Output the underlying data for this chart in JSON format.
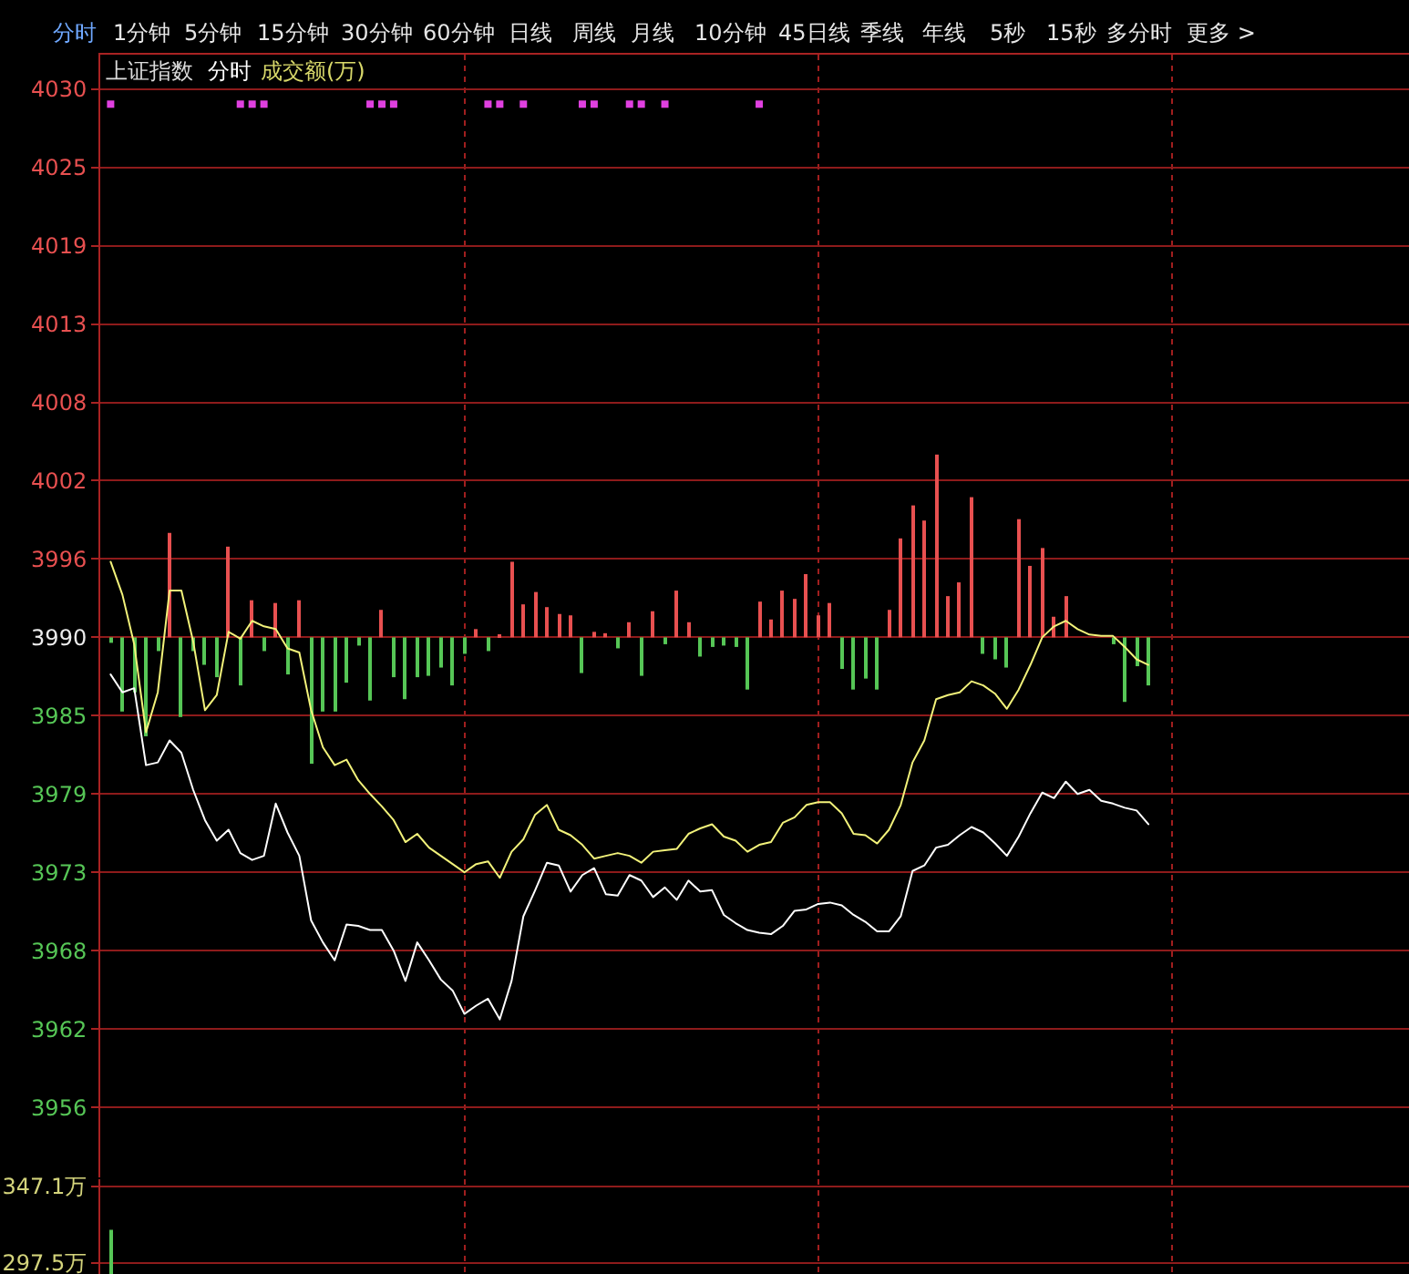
{
  "chart_data": [
    {
      "type": "line",
      "title": "上证指数",
      "subtitle": "分时",
      "annotations": [
        "成交额(万)",
        "分时",
        "1分钟",
        "5分钟",
        "15分钟",
        "30分钟",
        "60分钟",
        "日线",
        "周线",
        "月线",
        "10分钟",
        "45日线",
        "季线",
        "年线",
        "5秒",
        "15秒",
        "多分时",
        "更多 >"
      ],
      "categories": [
        null,
        null,
        null,
        null,
        null,
        null,
        null,
        null,
        null,
        null,
        null,
        null,
        null,
        null,
        null,
        null,
        null,
        null,
        null,
        null,
        null,
        null,
        null,
        null,
        null,
        null,
        null,
        null,
        null,
        null,
        null,
        null,
        null,
        null,
        null,
        null,
        null,
        null,
        null,
        null,
        null,
        null,
        null,
        null,
        null,
        null,
        null,
        null,
        null,
        null,
        null,
        null,
        null,
        null,
        null,
        null,
        null,
        null,
        null,
        null,
        null,
        null,
        null,
        null,
        null,
        null,
        null,
        null,
        null,
        null,
        null,
        null,
        null,
        null,
        null,
        null,
        null,
        null,
        null,
        null,
        null,
        null,
        null,
        null,
        null,
        null,
        null,
        null,
        null,
        null,
        null,
        null,
        null,
        null,
        null,
        null,
        null,
        null,
        null,
        null,
        null,
        null,
        null,
        null,
        null,
        null,
        null,
        null,
        null,
        null,
        null
      ],
      "ylim": [
        3951.1,
        4032.8
      ],
      "yticks": [
        {
          "value": 3956.2,
          "label": "3956"
        },
        {
          "value": 3961.9,
          "label": "3962"
        },
        {
          "value": 3967.6,
          "label": "3968"
        },
        {
          "value": 3973.3,
          "label": "3973"
        },
        {
          "value": 3979.0,
          "label": "3979"
        },
        {
          "value": 3984.7,
          "label": "3985"
        },
        {
          "value": 3990.4,
          "label": "3990"
        },
        {
          "value": 3996.1,
          "label": "3996"
        },
        {
          "value": 4001.8,
          "label": "4002"
        },
        {
          "value": 4007.5,
          "label": "4008"
        },
        {
          "value": 4013.2,
          "label": "4013"
        },
        {
          "value": 4018.9,
          "label": "4019"
        },
        {
          "value": 4024.6,
          "label": "4025"
        },
        {
          "value": 4030.3,
          "label": "4030"
        }
      ],
      "grid": true,
      "tick_labels": "y",
      "series": [
        {
          "type": "bar",
          "values": [
            -0.4,
            -5.4,
            -4.0,
            -7.2,
            -1.0,
            7.6,
            -5.8,
            -1.0,
            -2.0,
            -2.9,
            6.6,
            -3.5,
            2.7,
            -1.0,
            2.5,
            -2.7,
            2.7,
            -9.2,
            -5.4,
            -5.4,
            -3.3,
            -0.6,
            -4.6,
            2.0,
            -2.9,
            -4.5,
            -2.9,
            -2.8,
            -2.2,
            -3.5,
            -1.2,
            0.6,
            -1.0,
            0.1,
            5.5,
            2.4,
            3.3,
            2.2,
            1.7,
            1.6,
            -2.6,
            0.4,
            0.3,
            -0.8,
            1.1,
            -2.8,
            1.9,
            -0.5,
            3.4,
            1.1,
            -1.4,
            -0.7,
            -0.6,
            -0.7,
            -3.8,
            2.6,
            1.3,
            3.4,
            2.8,
            4.6,
            1.6,
            2.5,
            -2.3,
            -3.8,
            -3.0,
            -3.8,
            2.0,
            7.2,
            9.6,
            8.5,
            13.3,
            3.0,
            4.0,
            10.2,
            -1.2,
            -1.6,
            -2.2,
            8.6,
            5.2,
            6.5,
            1.5,
            3.0,
            null,
            null,
            null,
            -0.5,
            -4.7,
            -2.1,
            -3.5,
            null,
            null,
            null,
            null,
            null,
            null,
            null,
            null,
            null,
            null,
            null,
            null,
            null,
            null,
            null,
            null,
            null,
            null,
            null,
            null,
            null,
            null
          ],
          "base": [
            3990.4,
            3990.4,
            3990.4,
            3990.4,
            3990.4,
            3990.4,
            3990.4,
            3990.4,
            3990.4,
            3990.4,
            3990.4,
            3990.4,
            3990.4,
            3990.4,
            3990.4,
            3990.4,
            3990.4,
            3990.4,
            3990.4,
            3990.4,
            3990.4,
            3990.4,
            3990.4,
            3990.4,
            3990.4,
            3990.4,
            3990.4,
            3990.4,
            3990.4,
            3990.4,
            3990.4,
            3990.4,
            3990.4,
            3990.4,
            3990.4,
            3990.4,
            3990.4,
            3990.4,
            3990.4,
            3990.4,
            3990.4,
            3990.4,
            3990.4,
            3990.4,
            3990.4,
            3990.4,
            3990.4,
            3990.4,
            3990.4,
            3990.4,
            3990.4,
            3990.4,
            3990.4,
            3990.4,
            3990.4,
            3990.4,
            3990.4,
            3990.4,
            3990.4,
            3990.4,
            3990.4,
            3990.4,
            3990.4,
            3990.4,
            3990.4,
            3990.4,
            3990.4,
            3990.4,
            3990.4,
            3990.4,
            3990.4,
            3990.4,
            3990.4,
            3990.4,
            3990.4,
            3990.4,
            3990.4,
            3990.4,
            3990.4,
            3990.4,
            3990.4,
            3990.4,
            null,
            null,
            null,
            3990.4,
            3990.4,
            3990.4,
            3990.4,
            null,
            null,
            null,
            null,
            null,
            null,
            null,
            null,
            null,
            null,
            null,
            null,
            null,
            null,
            null,
            null,
            null,
            null,
            null,
            null,
            null,
            null
          ],
          "colors": [
            "#56c656",
            "#56c656",
            "#56c656",
            "#56c656",
            "#56c656",
            "#e85050",
            "#56c656",
            "#56c656",
            "#56c656",
            "#56c656",
            "#e85050",
            "#56c656",
            "#e85050",
            "#56c656",
            "#e85050",
            "#56c656",
            "#e85050",
            "#56c656",
            "#56c656",
            "#56c656",
            "#56c656",
            "#56c656",
            "#56c656",
            "#e85050",
            "#56c656",
            "#56c656",
            "#56c656",
            "#56c656",
            "#56c656",
            "#56c656",
            "#56c656",
            "#e85050",
            "#56c656",
            "#e85050",
            "#e85050",
            "#e85050",
            "#e85050",
            "#e85050",
            "#e85050",
            "#e85050",
            "#56c656",
            "#e85050",
            "#e85050",
            "#56c656",
            "#e85050",
            "#56c656",
            "#e85050",
            "#56c656",
            "#e85050",
            "#e85050",
            "#56c656",
            "#56c656",
            "#56c656",
            "#56c656",
            "#56c656",
            "#e85050",
            "#e85050",
            "#e85050",
            "#e85050",
            "#e85050",
            "#e85050",
            "#e85050",
            "#56c656",
            "#56c656",
            "#56c656",
            "#56c656",
            "#e85050",
            "#e85050",
            "#e85050",
            "#e85050",
            "#e85050",
            "#e85050",
            "#e85050",
            "#e85050",
            "#56c656",
            "#56c656",
            "#56c656",
            "#e85050",
            "#e85050",
            "#e85050",
            "#e85050",
            "#e85050",
            null,
            null,
            null,
            "#56c656",
            "#56c656",
            "#56c656",
            "#56c656",
            null,
            null,
            null,
            null,
            null,
            null,
            null,
            null,
            null,
            null,
            null,
            null,
            null,
            null,
            null,
            null,
            null,
            null,
            null,
            null,
            null,
            null
          ]
        },
        {
          "type": "line",
          "color": "#f2f27a",
          "values": [
            3995.9,
            3993.5,
            3989.9,
            3983.5,
            3986.4,
            3993.8,
            3993.8,
            3990.1,
            3985.1,
            3986.2,
            3990.8,
            3990.3,
            3991.6,
            3991.2,
            3991.0,
            3989.6,
            3989.3,
            3985.1,
            3982.4,
            3981.1,
            3981.5,
            3980.0,
            3979.0,
            3978.1,
            3977.1,
            3975.5,
            3976.1,
            3975.1,
            3974.5,
            3973.9,
            3973.3,
            3973.9,
            3974.1,
            3972.9,
            3974.8,
            3975.7,
            3977.5,
            3978.2,
            3976.4,
            3976.0,
            3975.3,
            3974.3,
            3974.5,
            3974.7,
            3974.5,
            3974.0,
            3974.8,
            3974.9,
            3975.0,
            3976.1,
            3976.5,
            3976.8,
            3975.9,
            3975.6,
            3974.8,
            3975.3,
            3975.5,
            3976.9,
            3977.3,
            3978.2,
            3978.4,
            3978.4,
            3977.6,
            3976.1,
            3976.0,
            3975.4,
            3976.4,
            3978.2,
            3981.3,
            3982.9,
            3985.9,
            3986.2,
            3986.4,
            3987.2,
            3986.9,
            3986.3,
            3985.2,
            3986.6,
            3988.4,
            3990.4,
            3991.2,
            3991.6,
            3991.0,
            3990.6,
            3990.5,
            3990.5,
            3989.7,
            3988.8,
            3988.4,
            null,
            null,
            null,
            null,
            null,
            null,
            null,
            null,
            null,
            null,
            null,
            null,
            null,
            null,
            null,
            null,
            null,
            null,
            null,
            null,
            null,
            null
          ]
        },
        {
          "type": "line",
          "color": "#ffffff",
          "values": [
            3987.7,
            3986.4,
            3986.7,
            3981.1,
            3981.3,
            3982.9,
            3982.0,
            3979.3,
            3977.1,
            3975.6,
            3976.4,
            3974.7,
            3974.2,
            3974.5,
            3978.3,
            3976.2,
            3974.5,
            3969.8,
            3968.2,
            3966.9,
            3969.5,
            3969.4,
            3969.1,
            3969.1,
            3967.6,
            3965.4,
            3968.2,
            3966.9,
            3965.5,
            3964.7,
            3963.0,
            3963.6,
            3964.1,
            3962.6,
            3965.4,
            3970.1,
            3972.0,
            3974.0,
            3973.8,
            3971.9,
            3973.1,
            3973.6,
            3971.7,
            3971.6,
            3973.1,
            3972.7,
            3971.5,
            3972.2,
            3971.3,
            3972.7,
            3971.9,
            3972.0,
            3970.2,
            3969.6,
            3969.1,
            3968.9,
            3968.8,
            3969.4,
            3970.5,
            3970.6,
            3971.0,
            3971.1,
            3970.9,
            3970.2,
            3969.7,
            3969.0,
            3969.0,
            3970.1,
            3973.4,
            3973.8,
            3975.1,
            3975.3,
            3976.0,
            3976.6,
            3976.2,
            3975.4,
            3974.5,
            3975.9,
            3977.6,
            3979.1,
            3978.7,
            3979.9,
            3979.0,
            3979.3,
            3978.5,
            3978.3,
            3978.0,
            3977.8,
            3976.8,
            null,
            null,
            null,
            null,
            null,
            null,
            null,
            null,
            null,
            null,
            null,
            null,
            null,
            null,
            null,
            null,
            null,
            null,
            null,
            null,
            null,
            null
          ]
        },
        {
          "type": "scatter",
          "color": "#e040e0",
          "marker": "square",
          "values": [
            4029.2,
            null,
            null,
            null,
            null,
            null,
            null,
            null,
            null,
            null,
            null,
            4029.2,
            4029.2,
            4029.2,
            null,
            null,
            null,
            null,
            null,
            null,
            null,
            null,
            4029.2,
            4029.2,
            4029.2,
            null,
            null,
            null,
            null,
            null,
            null,
            null,
            4029.2,
            4029.2,
            null,
            4029.2,
            null,
            null,
            null,
            null,
            4029.2,
            4029.2,
            null,
            null,
            4029.2,
            4029.2,
            null,
            4029.2,
            null,
            null,
            null,
            null,
            null,
            null,
            null,
            4029.2,
            null,
            null,
            null,
            null,
            null,
            null,
            null,
            null,
            null,
            null,
            null,
            null,
            null,
            null,
            null,
            null,
            null,
            null,
            null,
            null,
            null,
            null,
            null,
            null,
            null,
            null,
            null,
            null,
            null,
            null,
            null,
            null,
            null,
            null,
            null,
            null,
            null,
            null,
            null,
            null,
            null,
            null,
            null,
            null,
            null,
            null,
            null,
            null,
            null,
            null,
            null,
            null,
            null,
            null,
            null
          ]
        }
      ]
    },
    {
      "type": "bar",
      "categories": [
        null,
        null,
        null,
        null,
        null,
        null,
        null,
        null,
        null,
        null,
        null,
        null,
        null,
        null,
        null,
        null,
        null,
        null,
        null,
        null,
        null,
        null,
        null,
        null,
        null,
        null,
        null,
        null,
        null,
        null,
        null,
        null,
        null,
        null,
        null,
        null,
        null,
        null,
        null,
        null,
        null,
        null,
        null,
        null,
        null,
        null,
        null,
        null,
        null,
        null,
        null,
        null,
        null,
        null,
        null,
        null,
        null,
        null,
        null,
        null,
        null,
        null,
        null,
        null,
        null,
        null,
        null,
        null,
        null,
        null,
        null,
        null,
        null,
        null,
        null,
        null,
        null,
        null,
        null,
        null,
        null,
        null,
        null,
        null,
        null,
        null,
        null,
        null,
        null,
        null,
        null,
        null,
        null,
        null,
        null,
        null,
        null,
        null,
        null,
        null,
        null,
        null,
        null,
        null,
        null,
        null,
        null,
        null,
        null,
        null,
        null
      ],
      "values": [
        319.0,
        null,
        null,
        null,
        null,
        null,
        null,
        null,
        null,
        null,
        null,
        null,
        null,
        null,
        null,
        null,
        null,
        null,
        null,
        null,
        null,
        null,
        null,
        null,
        null,
        null,
        null,
        null,
        null,
        null,
        null,
        null,
        null,
        null,
        null,
        null,
        null,
        null,
        null,
        null,
        null,
        null,
        null,
        null,
        null,
        null,
        null,
        null,
        null,
        null,
        null,
        null,
        null,
        null,
        null,
        null,
        null,
        null,
        null,
        null,
        null,
        null,
        null,
        null,
        null,
        null,
        null,
        null,
        null,
        null,
        null,
        null,
        null,
        null,
        null,
        null,
        null,
        null,
        null,
        null,
        null,
        null,
        null,
        null,
        null,
        null,
        null,
        null,
        null,
        null,
        null,
        null,
        null,
        null,
        null,
        null,
        null,
        null,
        null,
        null,
        null,
        null,
        null,
        null,
        null,
        null,
        null,
        null,
        null,
        null,
        null
      ],
      "color": "#56c656",
      "ylim": [
        290.4,
        351.8
      ],
      "yticks": [
        {
          "value": 297.5,
          "label": "297.5万"
        },
        {
          "value": 347.1,
          "label": "347.1万"
        }
      ],
      "grid": true,
      "tick_labels": "y"
    }
  ]
}
